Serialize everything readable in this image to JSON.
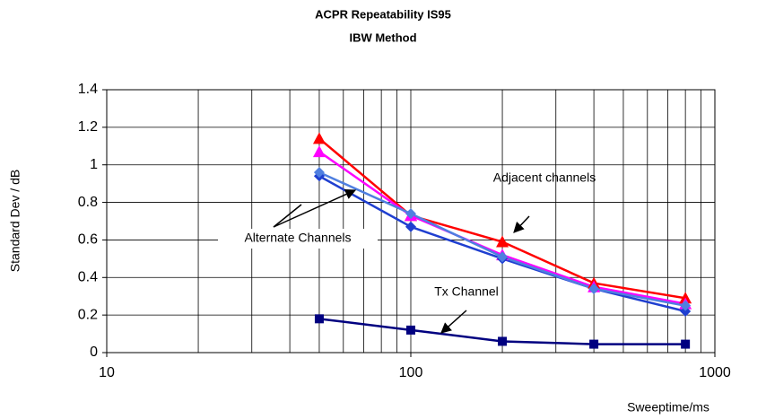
{
  "chart_data": {
    "type": "line",
    "title": "ACPR Repeatability IS95",
    "subtitle": "IBW Method",
    "y_label": "Standard Dev / dB",
    "x_label": "Sweeptime/ms",
    "x_scale": "log",
    "grid": true,
    "x": [
      50,
      100,
      200,
      400,
      800
    ],
    "series": [
      {
        "color": "#ff0000",
        "marker": "triangle",
        "values": [
          1.14,
          0.73,
          0.59,
          0.37,
          0.29
        ]
      },
      {
        "color": "#ff00ff",
        "marker": "triangle",
        "values": [
          1.07,
          0.73,
          0.52,
          0.35,
          0.26
        ]
      },
      {
        "color": "#1f3fd0",
        "marker": "diamond",
        "values": [
          0.94,
          0.67,
          0.5,
          0.34,
          0.22
        ]
      },
      {
        "color": "#4f7fe0",
        "marker": "diamond",
        "values": [
          0.96,
          0.74,
          0.51,
          0.34,
          0.25
        ]
      },
      {
        "color": "#000080",
        "marker": "square",
        "values": [
          0.18,
          0.12,
          0.06,
          0.045,
          0.045
        ]
      }
    ],
    "annotations": [
      "Adjacent channels",
      "Alternate Channels",
      "Tx Channel"
    ],
    "xlim": [
      10,
      1000
    ],
    "xticks": [
      10,
      100,
      1000
    ],
    "xminorticks": [
      20,
      30,
      40,
      50,
      60,
      70,
      80,
      90,
      200,
      300,
      400,
      500,
      600,
      700,
      800,
      900
    ],
    "ylim": [
      0,
      1.4
    ],
    "yticks": [
      0,
      0.2,
      0.4,
      0.6,
      0.8,
      1,
      1.2,
      1.4
    ]
  }
}
